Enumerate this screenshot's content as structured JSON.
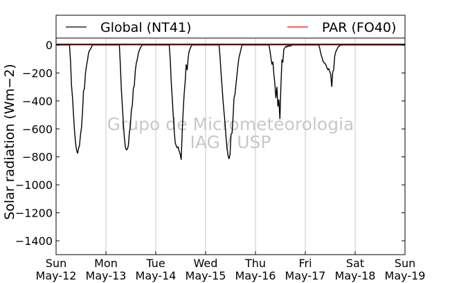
{
  "chart_data": {
    "type": "line",
    "title": "",
    "ylabel": "Solar radiation (Wm−2)",
    "xlabel": "",
    "ylim": [
      -1500,
      200
    ],
    "xlim": [
      0,
      7
    ],
    "yticks": [
      0,
      -200,
      -400,
      -600,
      -800,
      -1000,
      -1200,
      -1400
    ],
    "xticks": [
      {
        "x": 0,
        "day": "Sun",
        "date": "May-12"
      },
      {
        "x": 1,
        "day": "Mon",
        "date": "May-13"
      },
      {
        "x": 2,
        "day": "Tue",
        "date": "May-14"
      },
      {
        "x": 3,
        "day": "Wed",
        "date": "May-15"
      },
      {
        "x": 4,
        "day": "Thu",
        "date": "May-16"
      },
      {
        "x": 5,
        "day": "Fri",
        "date": "May-17"
      },
      {
        "x": 6,
        "day": "Sat",
        "date": "May-18"
      },
      {
        "x": 7,
        "day": "Sun",
        "date": "May-19"
      }
    ],
    "grid_x": true,
    "legend_position": "top",
    "series": [
      {
        "name": "Global (NT41)",
        "color": "#000000",
        "x": [
          0,
          0.27,
          0.29,
          0.31,
          0.33,
          0.35,
          0.37,
          0.39,
          0.41,
          0.43,
          0.45,
          0.47,
          0.49,
          0.51,
          0.53,
          0.55,
          0.57,
          0.59,
          0.61,
          0.63,
          0.65,
          0.67,
          0.69,
          0.71,
          0.73,
          1.27,
          1.29,
          1.31,
          1.33,
          1.35,
          1.37,
          1.39,
          1.41,
          1.43,
          1.45,
          1.47,
          1.49,
          1.51,
          1.53,
          1.55,
          1.57,
          1.59,
          1.61,
          1.63,
          1.65,
          1.67,
          1.69,
          1.71,
          1.73,
          2.27,
          2.29,
          2.31,
          2.33,
          2.35,
          2.37,
          2.39,
          2.41,
          2.43,
          2.45,
          2.47,
          2.49,
          2.51,
          2.53,
          2.55,
          2.57,
          2.59,
          2.61,
          2.63,
          2.65,
          2.67,
          2.69,
          2.71,
          2.73,
          3.27,
          3.29,
          3.31,
          3.33,
          3.35,
          3.37,
          3.39,
          3.41,
          3.43,
          3.45,
          3.47,
          3.49,
          3.51,
          3.53,
          3.55,
          3.57,
          3.59,
          3.61,
          3.63,
          3.65,
          3.67,
          3.69,
          3.71,
          3.73,
          4.27,
          4.29,
          4.31,
          4.33,
          4.35,
          4.37,
          4.39,
          4.41,
          4.43,
          4.45,
          4.47,
          4.49,
          4.51,
          4.53,
          4.55,
          4.57,
          4.59,
          4.61,
          4.63,
          4.65,
          4.67,
          4.69,
          4.71,
          4.73,
          5.27,
          5.29,
          5.31,
          5.33,
          5.35,
          5.37,
          5.39,
          5.41,
          5.43,
          5.45,
          5.47,
          5.49,
          5.51,
          5.53,
          5.55,
          5.57,
          5.59,
          5.61,
          5.63,
          5.65,
          5.67,
          5.69,
          5.71,
          5.73,
          7
        ],
        "y": [
          0,
          0,
          -120,
          -290,
          -380,
          -500,
          -610,
          -700,
          -750,
          -775,
          -740,
          -720,
          -640,
          -590,
          -480,
          -330,
          -310,
          -200,
          -150,
          -110,
          -60,
          -40,
          -30,
          -15,
          0,
          0,
          -150,
          -320,
          -440,
          -560,
          -660,
          -730,
          -750,
          -745,
          -720,
          -630,
          -580,
          -470,
          -430,
          -310,
          -290,
          -180,
          -130,
          -100,
          -60,
          -40,
          -20,
          -10,
          0,
          0,
          -100,
          -260,
          -380,
          -500,
          -610,
          -700,
          -720,
          -735,
          -730,
          -760,
          -780,
          -820,
          -620,
          -470,
          -350,
          -260,
          -140,
          -180,
          -90,
          -45,
          -25,
          -10,
          0,
          0,
          -90,
          -200,
          -300,
          -400,
          -480,
          -560,
          -660,
          -740,
          -790,
          -815,
          -780,
          -640,
          -630,
          -520,
          -380,
          -350,
          -280,
          -210,
          -140,
          -90,
          -60,
          -30,
          0,
          0,
          -40,
          -90,
          -140,
          -120,
          -210,
          -280,
          -380,
          -300,
          -440,
          -390,
          -530,
          -300,
          -110,
          -120,
          -30,
          -20,
          -10,
          -15,
          -5,
          -10,
          -5,
          -8,
          0,
          0,
          -25,
          -60,
          -85,
          -110,
          -125,
          -130,
          -140,
          -160,
          -175,
          -170,
          -190,
          -210,
          -300,
          -195,
          -175,
          -80,
          -50,
          -35,
          -20,
          -10,
          -5,
          -2,
          0,
          0
        ]
      },
      {
        "name": "PAR (FO40)",
        "color": "#ff0000",
        "x": [
          0,
          7
        ],
        "y": [
          0,
          0
        ]
      }
    ]
  },
  "watermark": {
    "line1": "Grupo de Micrometeorologia",
    "line2": "IAG / USP"
  }
}
